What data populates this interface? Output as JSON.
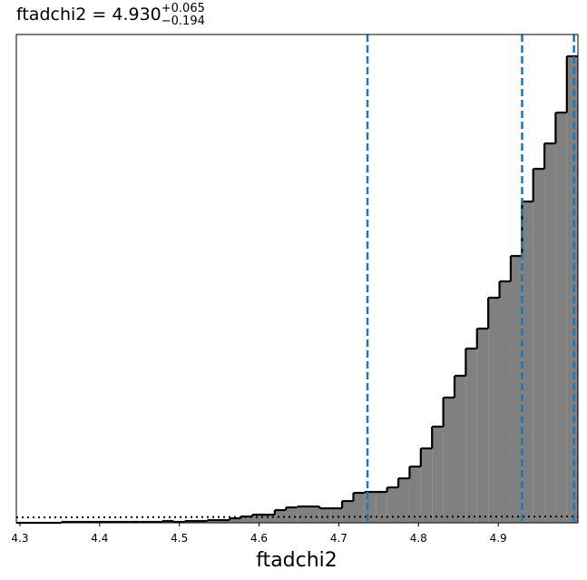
{
  "chart_data": {
    "type": "histogram",
    "title": "ftadchi2 = 4.930",
    "title_sup": "+0.065",
    "title_sub": "−0.194",
    "xlabel": "ftadchi2",
    "bins": [
      4.2955,
      4.3096,
      4.3237,
      4.3378,
      4.3519,
      4.366,
      4.38,
      4.3941,
      4.4082,
      4.4223,
      4.4364,
      4.4505,
      4.4646,
      4.4787,
      4.4928,
      4.5069,
      4.521,
      4.5351,
      4.5492,
      4.5633,
      4.5774,
      4.5915,
      4.6056,
      4.6197,
      4.6338,
      4.6479,
      4.662,
      4.676,
      4.6901,
      4.7042,
      4.7183,
      4.7324,
      4.7465,
      4.7606,
      4.7747,
      4.7888,
      4.8029,
      4.817,
      4.8311,
      4.8452,
      4.8593,
      4.8734,
      4.8875,
      4.9016,
      4.9157,
      4.9298,
      4.9439,
      4.958,
      4.972,
      4.9861,
      5.0
    ],
    "values": [
      0,
      0,
      0,
      0,
      1,
      1,
      1,
      1,
      1,
      1,
      1,
      1,
      1,
      2,
      1,
      2,
      2,
      3,
      3,
      5,
      7,
      9,
      9,
      14,
      17,
      18,
      18,
      16,
      16,
      24,
      33,
      34,
      34,
      39,
      49,
      62,
      82,
      106,
      138,
      162,
      192,
      214,
      248,
      266,
      294,
      354,
      390,
      418,
      452,
      514
    ],
    "color": "#808080",
    "edgecolor": "#000000",
    "lines": [
      {
        "x": [
          4.2955,
          5.0
        ],
        "values": [
          6,
          7
        ],
        "color": "#000000"
      }
    ],
    "vlines": {
      "values": [
        4.736,
        4.93,
        4.995
      ],
      "color": "#1f77b4"
    },
    "xlim": [
      4.2955,
      5.0
    ],
    "ylim": [
      0,
      538
    ],
    "xticks": [
      4.3,
      4.4,
      4.5,
      4.6,
      4.7,
      4.8,
      4.9
    ]
  }
}
